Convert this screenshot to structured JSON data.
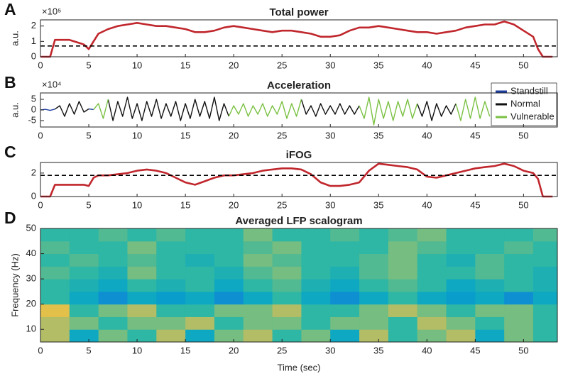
{
  "chart_data": [
    {
      "type": "line",
      "panel": "A",
      "title": "Total power",
      "y_label": "a.u.",
      "y_exponent": "×10⁵",
      "x": [
        0,
        1,
        1.5,
        2,
        3,
        4,
        4.5,
        5,
        5.5,
        6,
        7,
        8,
        9,
        10,
        11,
        12,
        13,
        14,
        15,
        16,
        17,
        18,
        19,
        20,
        21,
        22,
        23,
        24,
        25,
        26,
        27,
        28,
        29,
        30,
        31,
        32,
        33,
        34,
        35,
        36,
        37,
        38,
        39,
        40,
        41,
        42,
        43,
        44,
        45,
        46,
        47,
        48,
        49,
        50,
        51,
        51.5,
        52,
        52.5,
        53
      ],
      "series": [
        {
          "color": "#c0272d",
          "values": [
            0,
            0,
            1.1,
            1.1,
            1.1,
            0.9,
            0.8,
            0.5,
            1.0,
            1.5,
            1.8,
            2.0,
            2.1,
            2.2,
            2.1,
            2.0,
            2.0,
            1.9,
            1.8,
            1.6,
            1.6,
            1.7,
            1.9,
            2.0,
            1.9,
            1.8,
            1.7,
            1.6,
            1.7,
            1.7,
            1.6,
            1.5,
            1.3,
            1.3,
            1.4,
            1.7,
            1.9,
            1.9,
            2.0,
            1.9,
            1.8,
            1.7,
            1.6,
            1.6,
            1.5,
            1.6,
            1.7,
            1.9,
            2.0,
            2.1,
            2.1,
            2.3,
            2.1,
            1.7,
            1.3,
            0.5,
            0,
            0,
            0
          ]
        }
      ],
      "threshold": 0.7,
      "xlim": [
        0,
        53.5
      ],
      "xticks": [
        0,
        5,
        10,
        15,
        20,
        25,
        30,
        35,
        40,
        45,
        50
      ],
      "ylim": [
        0,
        2.4
      ],
      "yticks": [
        0,
        1,
        2
      ]
    },
    {
      "type": "line",
      "panel": "B",
      "title": "Acceleration",
      "y_label": "a.u.",
      "y_exponent": "×10⁴",
      "x": [
        0,
        0.5,
        1,
        1.5,
        2,
        2.5,
        3,
        3.5,
        4,
        4.5,
        5,
        5.5,
        6,
        6.5,
        7,
        7.5,
        8,
        8.5,
        9,
        9.5,
        10,
        10.5,
        11,
        11.5,
        12,
        12.5,
        13,
        13.5,
        14,
        14.5,
        15,
        15.5,
        16,
        16.5,
        17,
        17.5,
        18,
        18.5,
        19,
        19.5,
        20,
        20.5,
        21,
        21.5,
        22,
        22.5,
        23,
        23.5,
        24,
        24.5,
        25,
        25.5,
        26,
        26.5,
        27,
        27.5,
        28,
        28.5,
        29,
        29.5,
        30,
        30.5,
        31,
        31.5,
        32,
        32.5,
        33,
        33.5,
        34,
        34.5,
        35,
        35.5,
        36,
        36.5,
        37,
        37.5,
        38,
        38.5,
        39,
        39.5,
        40,
        40.5,
        41,
        41.5,
        42,
        42.5,
        43,
        43.5,
        44,
        44.5,
        45,
        45.5,
        46,
        46.5
      ],
      "series": [
        {
          "name": "Standstill",
          "color": "#1f3fa0",
          "values": [
            0,
            0.3,
            -0.2,
            0.4,
            null,
            null,
            null,
            null,
            null,
            null,
            0.5,
            0.2,
            null,
            null,
            null,
            null,
            null,
            null,
            null,
            null,
            null,
            null,
            null,
            null,
            null,
            null,
            null,
            null,
            null,
            null,
            null,
            null,
            null,
            null,
            null,
            null,
            null,
            null,
            null,
            null,
            null,
            null,
            null,
            null,
            null,
            null,
            null,
            null,
            null,
            null,
            null,
            null,
            null,
            null,
            null,
            null,
            null,
            null,
            null,
            null,
            null,
            null,
            null,
            null,
            null,
            null,
            null,
            null,
            null,
            null,
            null,
            null,
            null,
            null,
            null,
            null,
            null,
            null,
            null,
            null,
            null,
            null,
            null,
            null,
            null,
            null,
            null,
            null,
            null,
            null,
            null,
            null,
            null,
            null
          ]
        },
        {
          "name": "Normal",
          "color": "#111111",
          "values": [
            null,
            null,
            null,
            0.4,
            2,
            -3,
            3,
            -2,
            4,
            -1,
            0.5,
            null,
            null,
            null,
            5,
            -5,
            4,
            -3,
            6,
            -4,
            3,
            -5,
            4,
            -3,
            5,
            -4,
            3,
            -3,
            4,
            -5,
            3,
            -4,
            5,
            -3,
            4,
            -4,
            6,
            -5,
            3,
            -3,
            null,
            null,
            null,
            null,
            null,
            null,
            null,
            null,
            null,
            null,
            null,
            null,
            null,
            null,
            5,
            -2,
            2,
            -3,
            3,
            -2,
            2,
            -2,
            3,
            -2,
            2,
            -2,
            2,
            null,
            null,
            null,
            null,
            null,
            null,
            null,
            null,
            null,
            null,
            null,
            3,
            -3,
            4,
            -5,
            3,
            -3,
            2,
            -2,
            3,
            null,
            null,
            null,
            null,
            null,
            null,
            null
          ]
        },
        {
          "name": "Vulnerable",
          "color": "#7ac143",
          "values": [
            null,
            null,
            null,
            null,
            null,
            null,
            null,
            null,
            null,
            null,
            null,
            0.2,
            3,
            -4,
            5,
            null,
            null,
            null,
            null,
            null,
            null,
            null,
            null,
            null,
            null,
            null,
            null,
            null,
            null,
            null,
            null,
            null,
            null,
            null,
            null,
            null,
            null,
            null,
            null,
            -3,
            2,
            -2,
            3,
            -3,
            2,
            -2,
            3,
            -3,
            2,
            -2,
            4,
            -4,
            3,
            -3,
            5,
            null,
            null,
            null,
            null,
            null,
            null,
            null,
            null,
            null,
            null,
            null,
            2,
            -4,
            6,
            -7,
            5,
            -4,
            4,
            -5,
            4,
            -3,
            5,
            -4,
            3,
            null,
            null,
            null,
            null,
            null,
            null,
            null,
            3,
            -5,
            5,
            -4,
            6,
            -4,
            4,
            -3
          ]
        }
      ],
      "legend": "upper right",
      "xlim": [
        0,
        53.5
      ],
      "xticks": [
        0,
        5,
        10,
        15,
        20,
        25,
        30,
        35,
        40,
        45,
        50
      ],
      "ylim": [
        -8,
        8
      ],
      "yticks": [
        -5,
        0,
        5
      ]
    },
    {
      "type": "line",
      "panel": "C",
      "title": "iFOG",
      "x": [
        0,
        1,
        1.5,
        2,
        3,
        4,
        4.5,
        5,
        5.5,
        6,
        7,
        8,
        9,
        10,
        11,
        12,
        13,
        14,
        15,
        16,
        17,
        18,
        19,
        20,
        21,
        22,
        23,
        24,
        25,
        26,
        27,
        28,
        29,
        30,
        31,
        32,
        33,
        34,
        35,
        36,
        37,
        38,
        39,
        40,
        41,
        42,
        43,
        44,
        45,
        46,
        47,
        48,
        49,
        50,
        51,
        51.5,
        52,
        52.5,
        53
      ],
      "series": [
        {
          "color": "#c0272d",
          "values": [
            0,
            0,
            1.0,
            1.0,
            1.0,
            1.0,
            1.0,
            0.9,
            1.6,
            1.8,
            1.8,
            1.9,
            2.0,
            2.2,
            2.3,
            2.2,
            2.0,
            1.6,
            1.2,
            1.0,
            1.3,
            1.6,
            1.8,
            1.8,
            1.9,
            2.0,
            2.2,
            2.3,
            2.4,
            2.4,
            2.3,
            1.9,
            1.2,
            0.9,
            0.9,
            1.0,
            1.2,
            2.2,
            2.8,
            2.7,
            2.6,
            2.5,
            2.3,
            1.7,
            1.6,
            1.8,
            2.0,
            2.2,
            2.4,
            2.5,
            2.6,
            2.8,
            2.6,
            2.2,
            2.0,
            1.5,
            0,
            0,
            0
          ]
        }
      ],
      "threshold": 1.8,
      "xlim": [
        0,
        53.5
      ],
      "xticks": [
        0,
        5,
        10,
        15,
        20,
        25,
        30,
        35,
        40,
        45,
        50
      ],
      "ylim": [
        0,
        2.9
      ],
      "yticks": [
        0,
        2
      ]
    },
    {
      "type": "heatmap",
      "panel": "D",
      "title": "Averaged LFP scalogram",
      "y_label": "Frequency (Hz)",
      "x_label": "Time (sec)",
      "x_edges": [
        0,
        3,
        6,
        9,
        12,
        15,
        18,
        21,
        24,
        27,
        30,
        33,
        36,
        39,
        42,
        45,
        48,
        51,
        53.5
      ],
      "y_edges": [
        5,
        10,
        15,
        20,
        25,
        30,
        35,
        40,
        45,
        50
      ],
      "z": [
        [
          0.7,
          0.4,
          0.6,
          0.5,
          0.7,
          0.4,
          0.6,
          0.7,
          0.5,
          0.6,
          0.4,
          0.7,
          0.5,
          0.6,
          0.7,
          0.4,
          0.6,
          0.5
        ],
        [
          0.7,
          0.6,
          0.5,
          0.6,
          0.6,
          0.7,
          0.5,
          0.6,
          0.6,
          0.5,
          0.6,
          0.6,
          0.5,
          0.7,
          0.6,
          0.5,
          0.6,
          0.5
        ],
        [
          0.8,
          0.5,
          0.6,
          0.7,
          0.5,
          0.5,
          0.6,
          0.6,
          0.7,
          0.5,
          0.5,
          0.6,
          0.7,
          0.6,
          0.5,
          0.6,
          0.6,
          0.5
        ],
        [
          0.5,
          0.4,
          0.3,
          0.4,
          0.35,
          0.4,
          0.3,
          0.4,
          0.5,
          0.4,
          0.3,
          0.4,
          0.5,
          0.4,
          0.35,
          0.4,
          0.3,
          0.4
        ],
        [
          0.5,
          0.45,
          0.4,
          0.5,
          0.45,
          0.5,
          0.4,
          0.5,
          0.55,
          0.45,
          0.4,
          0.5,
          0.55,
          0.5,
          0.4,
          0.45,
          0.5,
          0.45
        ],
        [
          0.55,
          0.5,
          0.45,
          0.6,
          0.5,
          0.5,
          0.45,
          0.55,
          0.6,
          0.5,
          0.45,
          0.55,
          0.6,
          0.5,
          0.5,
          0.55,
          0.5,
          0.45
        ],
        [
          0.5,
          0.55,
          0.5,
          0.55,
          0.5,
          0.45,
          0.5,
          0.6,
          0.55,
          0.5,
          0.5,
          0.55,
          0.6,
          0.5,
          0.45,
          0.55,
          0.5,
          0.5
        ],
        [
          0.55,
          0.5,
          0.5,
          0.6,
          0.5,
          0.5,
          0.5,
          0.55,
          0.6,
          0.5,
          0.5,
          0.5,
          0.6,
          0.55,
          0.5,
          0.5,
          0.55,
          0.5
        ],
        [
          0.5,
          0.5,
          0.55,
          0.5,
          0.55,
          0.5,
          0.5,
          0.6,
          0.5,
          0.5,
          0.55,
          0.5,
          0.55,
          0.6,
          0.5,
          0.5,
          0.5,
          0.55
        ]
      ],
      "colormap": [
        "#352a87",
        "#0f5cdd",
        "#1481d6",
        "#06a4ca",
        "#2eb7a4",
        "#87bf77",
        "#d1bb59",
        "#fec832",
        "#f9fb0e"
      ],
      "xlim": [
        0,
        53.5
      ],
      "xticks": [
        0,
        5,
        10,
        15,
        20,
        25,
        30,
        35,
        40,
        45,
        50
      ],
      "ylim": [
        5,
        50
      ],
      "yticks": [
        10,
        20,
        30,
        40,
        50
      ]
    }
  ]
}
